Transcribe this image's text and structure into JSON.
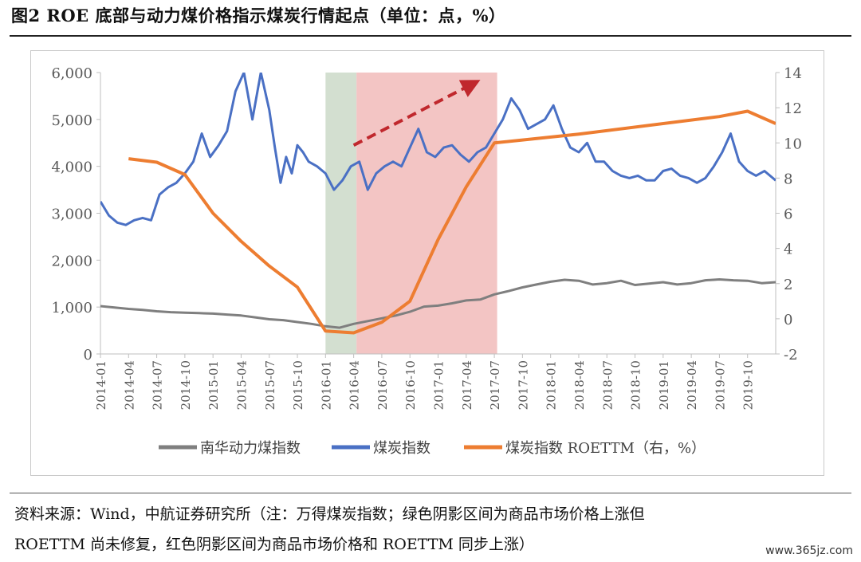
{
  "figure": {
    "title": "图2 ROE 底部与动力煤价格指示煤炭行情起点（单位：点，%）",
    "source_line1": "资料来源：Wind，中航证券研究所（注：万得煤炭指数；绿色阴影区间为商品市场价格上涨但",
    "source_line2": "ROETTM 尚未修复，红色阴影区间为商品市场价格和 ROETTM 同步上涨）",
    "watermark": "www.365jz.com"
  },
  "chart_data": {
    "type": "line",
    "left_axis": {
      "ticks": [
        "0",
        "1,000",
        "2,000",
        "3,000",
        "4,000",
        "5,000",
        "6,000"
      ],
      "min": 0,
      "max": 6000
    },
    "right_axis": {
      "ticks": [
        "-2",
        "0",
        "2",
        "4",
        "6",
        "8",
        "10",
        "12",
        "14"
      ],
      "min": -2,
      "max": 14
    },
    "x_ticks": [
      "2014-01",
      "2014-04",
      "2014-07",
      "2014-10",
      "2015-01",
      "2015-04",
      "2015-07",
      "2015-10",
      "2016-01",
      "2016-04",
      "2016-07",
      "2016-10",
      "2017-01",
      "2017-04",
      "2017-07",
      "2017-10",
      "2018-01",
      "2018-04",
      "2018-07",
      "2018-10",
      "2019-01",
      "2019-04",
      "2019-07",
      "2019-10"
    ],
    "x_range": [
      0,
      24
    ],
    "shaded_regions": [
      {
        "color": "#d3dfd0",
        "from": 8.0,
        "to": 9.1
      },
      {
        "color": "#f3c5c4",
        "from": 9.1,
        "to": 14.1
      }
    ],
    "series": [
      {
        "name": "南华动力煤指数",
        "axis": "left",
        "color": "#7f7f7f",
        "x": [
          0,
          0.5,
          1,
          1.5,
          2,
          2.5,
          3,
          3.5,
          4,
          4.5,
          5,
          5.5,
          6,
          6.5,
          7,
          7.5,
          8,
          8.5,
          9,
          9.5,
          10,
          10.5,
          11,
          11.5,
          12,
          12.5,
          13,
          13.5,
          14,
          14.5,
          15,
          15.5,
          16,
          16.5,
          17,
          17.5,
          18,
          18.5,
          19,
          19.5,
          20,
          20.5,
          21,
          21.5,
          22,
          22.5,
          23,
          23.5,
          24
        ],
        "values": [
          1020,
          990,
          960,
          940,
          910,
          890,
          880,
          870,
          860,
          840,
          820,
          780,
          740,
          720,
          680,
          640,
          590,
          560,
          640,
          700,
          760,
          820,
          900,
          1010,
          1030,
          1080,
          1140,
          1160,
          1270,
          1340,
          1420,
          1480,
          1540,
          1580,
          1560,
          1480,
          1510,
          1560,
          1470,
          1500,
          1530,
          1480,
          1510,
          1570,
          1590,
          1570,
          1560,
          1510,
          1530
        ]
      },
      {
        "name": "煤炭指数",
        "axis": "left",
        "color": "#4a70c4",
        "x": [
          0,
          0.3,
          0.6,
          0.9,
          1.2,
          1.5,
          1.8,
          2.1,
          2.4,
          2.7,
          3.0,
          3.3,
          3.6,
          3.9,
          4.2,
          4.5,
          4.8,
          5.1,
          5.4,
          5.7,
          6.0,
          6.2,
          6.4,
          6.6,
          6.8,
          7.0,
          7.2,
          7.4,
          7.7,
          8.0,
          8.3,
          8.6,
          8.9,
          9.2,
          9.5,
          9.8,
          10.1,
          10.4,
          10.7,
          11.0,
          11.3,
          11.6,
          11.9,
          12.2,
          12.5,
          12.8,
          13.1,
          13.4,
          13.7,
          14.0,
          14.3,
          14.6,
          14.9,
          15.2,
          15.5,
          15.8,
          16.1,
          16.4,
          16.7,
          17.0,
          17.3,
          17.6,
          17.9,
          18.2,
          18.5,
          18.8,
          19.1,
          19.4,
          19.7,
          20.0,
          20.3,
          20.6,
          20.9,
          21.2,
          21.5,
          21.8,
          22.1,
          22.4,
          22.7,
          23.0,
          23.3,
          23.6,
          24.0
        ],
        "values": [
          3250,
          2950,
          2800,
          2750,
          2850,
          2900,
          2850,
          3400,
          3550,
          3650,
          3850,
          4100,
          4700,
          4200,
          4450,
          4750,
          5600,
          6000,
          5000,
          6000,
          5200,
          4400,
          3650,
          4200,
          3850,
          4450,
          4300,
          4100,
          4000,
          3850,
          3500,
          3700,
          4000,
          4100,
          3500,
          3850,
          4000,
          4100,
          4000,
          4400,
          4800,
          4300,
          4200,
          4400,
          4450,
          4250,
          4100,
          4300,
          4400,
          4700,
          5000,
          5450,
          5200,
          4800,
          4900,
          5000,
          5300,
          4800,
          4400,
          4300,
          4500,
          4100,
          4100,
          3900,
          3800,
          3750,
          3800,
          3700,
          3700,
          3900,
          3950,
          3800,
          3750,
          3650,
          3750,
          4000,
          4300,
          4700,
          4100,
          3900,
          3800,
          3900,
          3700
        ]
      },
      {
        "name": "煤炭指数 ROETTM（右，%）",
        "axis": "right",
        "color": "#ed7d31",
        "x": [
          1,
          2,
          3,
          4,
          5,
          6,
          7,
          8,
          9,
          10,
          11,
          12,
          13,
          14,
          17,
          22,
          23,
          24
        ],
        "values": [
          9.1,
          8.9,
          8.2,
          6.0,
          4.4,
          3.0,
          1.8,
          -0.7,
          -0.8,
          -0.2,
          1.0,
          4.5,
          7.5,
          10.0,
          10.5,
          11.5,
          11.8,
          11.1
        ]
      }
    ],
    "arrow": {
      "color": "#c0282d",
      "from": [
        9.0,
        4450
      ],
      "to": [
        13.2,
        5750
      ]
    }
  }
}
